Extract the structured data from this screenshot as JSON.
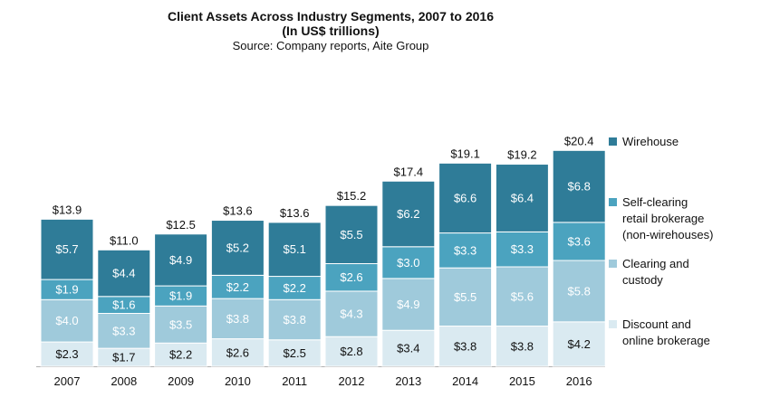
{
  "chart_data": {
    "type": "bar",
    "stacked": true,
    "title": "Client Assets Across Industry Segments, 2007 to 2016",
    "subtitle": "(In US$ trillions)",
    "source": "Source: Company reports, Aite Group",
    "categories": [
      "2007",
      "2008",
      "2009",
      "2010",
      "2011",
      "2012",
      "2013",
      "2014",
      "2015",
      "2016"
    ],
    "series": [
      {
        "name": "Discount and online brokerage",
        "color": "#daeaf1",
        "label_color": "#111111",
        "values": [
          2.3,
          1.7,
          2.2,
          2.6,
          2.5,
          2.8,
          3.4,
          3.8,
          3.8,
          4.2
        ],
        "labels": [
          "$2.3",
          "$1.7",
          "$2.2",
          "$2.6",
          "$2.5",
          "$2.8",
          "$3.4",
          "$3.8",
          "$3.8",
          "$4.2"
        ]
      },
      {
        "name": "Clearing and custody",
        "color": "#9fcadb",
        "label_color": "#ffffff",
        "values": [
          4.0,
          3.3,
          3.5,
          3.8,
          3.8,
          4.3,
          4.9,
          5.5,
          5.6,
          5.8
        ],
        "labels": [
          "$4.0",
          "$3.3",
          "$3.5",
          "$3.8",
          "$3.8",
          "$4.3",
          "$4.9",
          "$5.5",
          "$5.6",
          "$5.8"
        ]
      },
      {
        "name": "Self-clearing retail brokerage (non-wirehouses)",
        "color": "#4ba3bf",
        "label_color": "#ffffff",
        "values": [
          1.9,
          1.6,
          1.9,
          2.2,
          2.2,
          2.6,
          3.0,
          3.3,
          3.3,
          3.6
        ],
        "labels": [
          "$1.9",
          "$1.6",
          "$1.9",
          "$2.2",
          "$2.2",
          "$2.6",
          "$3.0",
          "$3.3",
          "$3.3",
          "$3.6"
        ]
      },
      {
        "name": "Wirehouse",
        "color": "#2f7c98",
        "label_color": "#ffffff",
        "values": [
          5.7,
          4.4,
          4.9,
          5.2,
          5.1,
          5.5,
          6.2,
          6.6,
          6.4,
          6.8
        ],
        "labels": [
          "$5.7",
          "$4.4",
          "$4.9",
          "$5.2",
          "$5.1",
          "$5.5",
          "$6.2",
          "$6.6",
          "$6.4",
          "$6.8"
        ]
      }
    ],
    "totals": [
      13.9,
      11.0,
      12.5,
      13.6,
      13.6,
      15.2,
      17.4,
      19.1,
      19.2,
      20.4
    ],
    "total_labels": [
      "$13.9",
      "$11.0",
      "$12.5",
      "$13.6",
      "$13.6",
      "$15.2",
      "$17.4",
      "$19.1",
      "$19.2",
      "$20.4"
    ],
    "legend_order": [
      "Wirehouse",
      "Self-clearing retail brokerage (non-wirehouses)",
      "Clearing and custody",
      "Discount and online brokerage"
    ],
    "legend_lines": [
      [
        "Wirehouse"
      ],
      [
        "Self-clearing",
        "retail brokerage",
        "(non-wirehouses)"
      ],
      [
        "Clearing and",
        "custody"
      ],
      [
        "Discount and",
        "online brokerage"
      ]
    ],
    "legend_position": "right",
    "ylim": [
      0,
      21
    ],
    "grid": false,
    "xlabel": "",
    "ylabel": ""
  }
}
